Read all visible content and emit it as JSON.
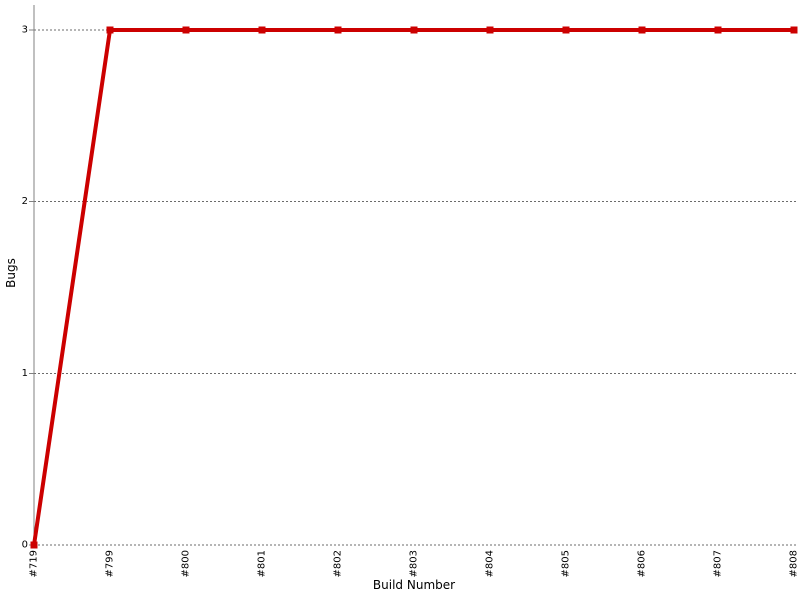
{
  "chart_data": {
    "type": "line",
    "title": "",
    "xlabel": "Build Number",
    "ylabel": "Bugs",
    "categories": [
      "#719",
      "#799",
      "#800",
      "#801",
      "#802",
      "#803",
      "#804",
      "#805",
      "#806",
      "#807",
      "#808"
    ],
    "series": [
      {
        "name": "Bugs",
        "values": [
          0,
          3,
          3,
          3,
          3,
          3,
          3,
          3,
          3,
          3,
          3
        ],
        "color": "#cc0000",
        "marker": "square"
      }
    ],
    "yticks": [
      0,
      1,
      2,
      3
    ],
    "ylim": [
      0,
      3.17
    ],
    "grid": "horizontal-dashed",
    "legend": "none",
    "background_color": "#ffffff",
    "axis_color": "#808080",
    "grid_color": "#6b6b6b",
    "text_color": "#000000"
  }
}
